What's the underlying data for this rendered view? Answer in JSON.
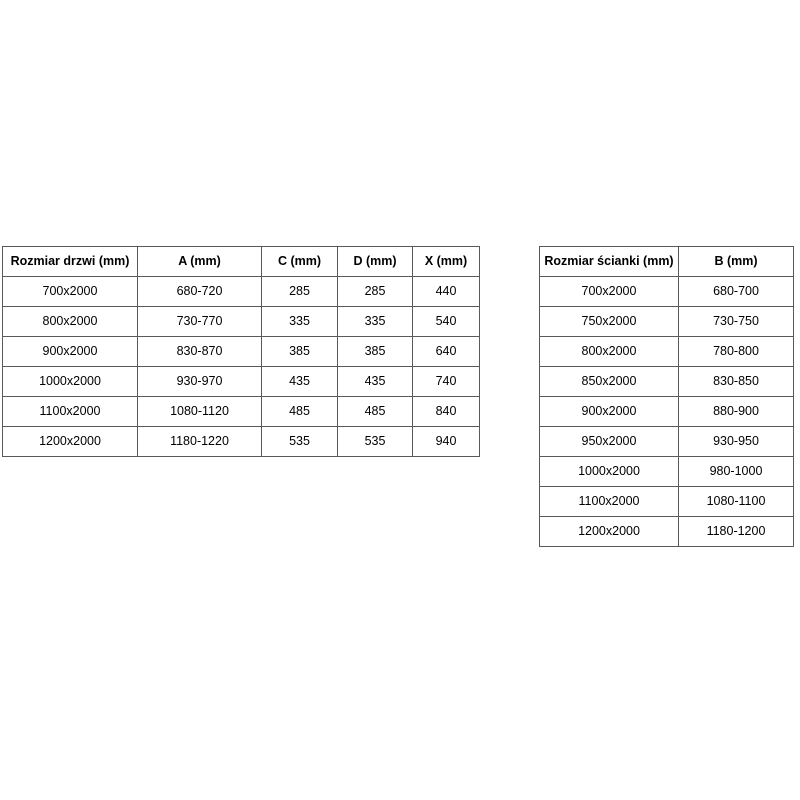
{
  "colors": {
    "background": "#ffffff",
    "border": "#595959",
    "text": "#000000"
  },
  "tables": {
    "doors": {
      "name": "door-sizes",
      "headers": [
        "Rozmiar drzwi (mm)",
        "A (mm)",
        "C (mm)",
        "D (mm)",
        "X (mm)"
      ],
      "rows": [
        [
          "700x2000",
          "680-720",
          "285",
          "285",
          "440"
        ],
        [
          "800x2000",
          "730-770",
          "335",
          "335",
          "540"
        ],
        [
          "900x2000",
          "830-870",
          "385",
          "385",
          "640"
        ],
        [
          "1000x2000",
          "930-970",
          "435",
          "435",
          "740"
        ],
        [
          "1100x2000",
          "1080-1120",
          "485",
          "485",
          "840"
        ],
        [
          "1200x2000",
          "1180-1220",
          "535",
          "535",
          "940"
        ]
      ]
    },
    "walls": {
      "name": "wall-sizes",
      "headers": [
        "Rozmiar ścianki (mm)",
        "B (mm)"
      ],
      "rows": [
        [
          "700x2000",
          "680-700"
        ],
        [
          "750x2000",
          "730-750"
        ],
        [
          "800x2000",
          "780-800"
        ],
        [
          "850x2000",
          "830-850"
        ],
        [
          "900x2000",
          "880-900"
        ],
        [
          "950x2000",
          "930-950"
        ],
        [
          "1000x2000",
          "980-1000"
        ],
        [
          "1100x2000",
          "1080-1100"
        ],
        [
          "1200x2000",
          "1180-1200"
        ]
      ]
    }
  }
}
